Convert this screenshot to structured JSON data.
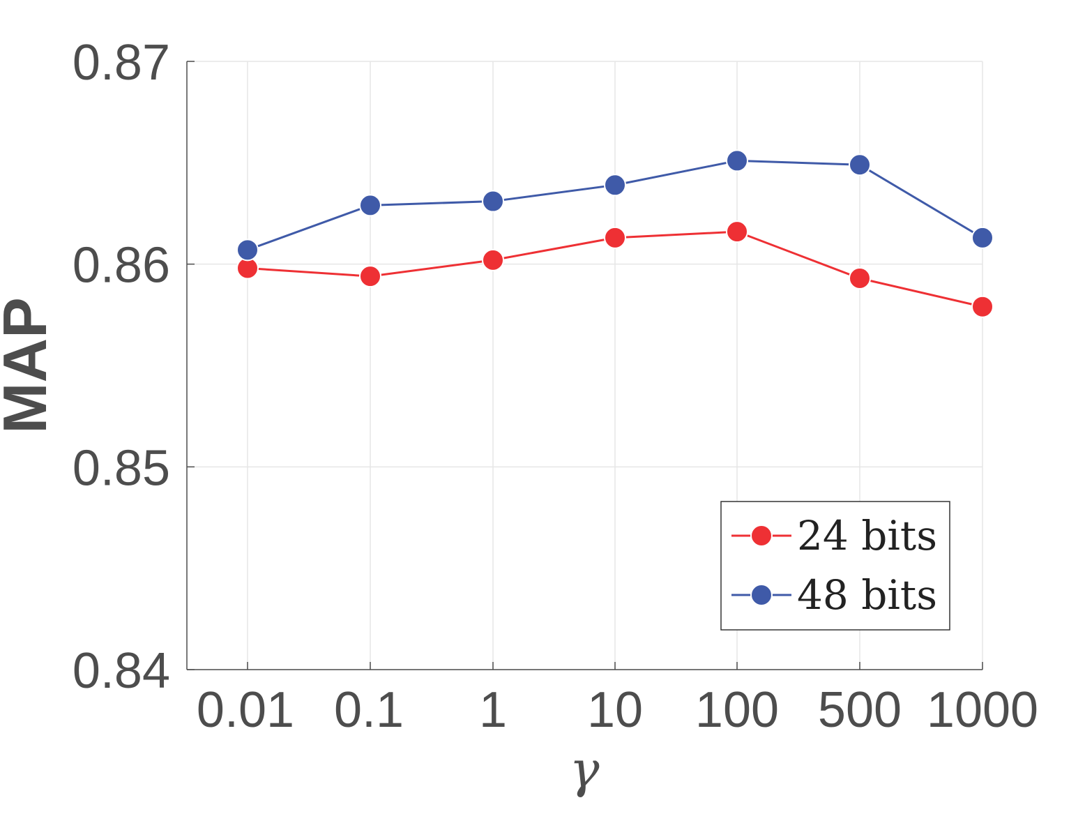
{
  "chart_data": {
    "type": "line",
    "categories": [
      "0.01",
      "0.1",
      "1",
      "10",
      "100",
      "500",
      "1000"
    ],
    "series": [
      {
        "name": "24 bits",
        "color": "#ee3034",
        "values": [
          0.8598,
          0.8594,
          0.8602,
          0.8613,
          0.8616,
          0.8593,
          0.8579
        ]
      },
      {
        "name": "48 bits",
        "color": "#3f5aa8",
        "values": [
          0.8607,
          0.8629,
          0.8631,
          0.8639,
          0.8651,
          0.8649,
          0.8613
        ]
      }
    ],
    "yticks": [
      "0.84",
      "0.85",
      "0.86",
      "0.87"
    ],
    "ylim": [
      0.84,
      0.87
    ],
    "xlabel": "γ",
    "ylabel": "MAP",
    "grid": true,
    "legend_position": "bottom-right"
  }
}
